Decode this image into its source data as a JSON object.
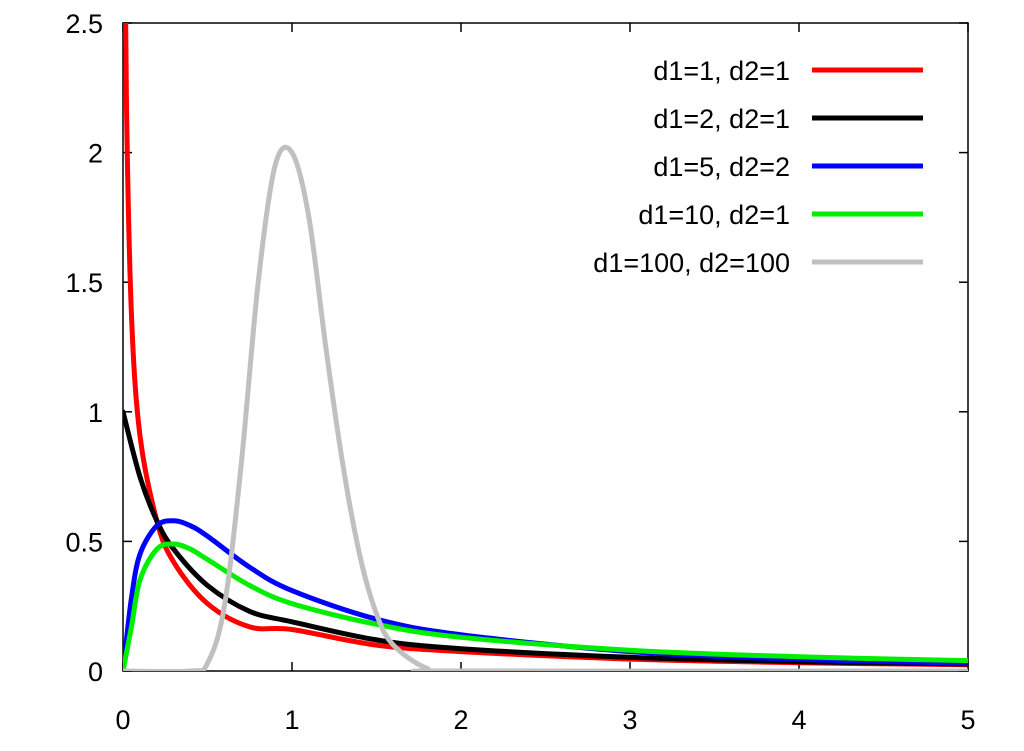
{
  "chart_data": {
    "type": "line",
    "title": "",
    "xlabel": "",
    "ylabel": "",
    "xlim": [
      0,
      5
    ],
    "ylim": [
      0,
      2.5
    ],
    "x_ticks": [
      0,
      1,
      2,
      3,
      4,
      5
    ],
    "y_ticks": [
      0,
      0.5,
      1,
      1.5,
      2,
      2.5
    ],
    "x_tick_labels": [
      "0",
      "1",
      "2",
      "3",
      "4",
      "5"
    ],
    "y_tick_labels": [
      "0",
      "0.5",
      "1",
      "1.5",
      "2",
      "2.5"
    ],
    "grid": false,
    "legend_position": "top-right",
    "series": [
      {
        "name": "d1=1, d2=1",
        "color": "#ff0000",
        "x": [
          0.01,
          0.02,
          0.05,
          0.1,
          0.2,
          0.3,
          0.5,
          0.75,
          1,
          1.5,
          2,
          3,
          4,
          5
        ],
        "y": [
          3.15,
          2.21,
          1.38,
          0.91,
          0.58,
          0.42,
          0.26,
          0.17,
          0.16,
          0.1,
          0.075,
          0.046,
          0.032,
          0.024
        ]
      },
      {
        "name": "d1=2, d2=1",
        "color": "#000000",
        "x": [
          0,
          0.1,
          0.2,
          0.3,
          0.5,
          0.75,
          1,
          1.5,
          2,
          3,
          4,
          5
        ],
        "y": [
          1.0,
          0.75,
          0.58,
          0.47,
          0.33,
          0.23,
          0.19,
          0.12,
          0.086,
          0.053,
          0.036,
          0.027
        ]
      },
      {
        "name": "d1=5, d2=2",
        "color": "#0000ff",
        "x": [
          0,
          0.05,
          0.1,
          0.2,
          0.3,
          0.4,
          0.5,
          0.75,
          1,
          1.5,
          2,
          3,
          4,
          5
        ],
        "y": [
          0,
          0.28,
          0.45,
          0.56,
          0.58,
          0.56,
          0.52,
          0.4,
          0.31,
          0.2,
          0.14,
          0.075,
          0.045,
          0.03
        ]
      },
      {
        "name": "d1=10, d2=1",
        "color": "#00ee00",
        "x": [
          0,
          0.05,
          0.1,
          0.2,
          0.3,
          0.4,
          0.5,
          0.75,
          1,
          1.5,
          2,
          3,
          4,
          5
        ],
        "y": [
          0,
          0.17,
          0.35,
          0.47,
          0.49,
          0.47,
          0.43,
          0.33,
          0.26,
          0.18,
          0.13,
          0.08,
          0.055,
          0.04
        ]
      },
      {
        "name": "d1=100, d2=100",
        "color": "#c0c0c0",
        "x": [
          0,
          0.4,
          0.5,
          0.6,
          0.7,
          0.8,
          0.9,
          1.0,
          1.1,
          1.2,
          1.3,
          1.4,
          1.5,
          1.6,
          1.8,
          2.0,
          5.0
        ],
        "y": [
          0,
          0.0,
          0.03,
          0.25,
          0.8,
          1.5,
          1.95,
          2.0,
          1.75,
          1.25,
          0.8,
          0.45,
          0.22,
          0.1,
          0.01,
          0.0,
          0.0
        ]
      }
    ]
  }
}
